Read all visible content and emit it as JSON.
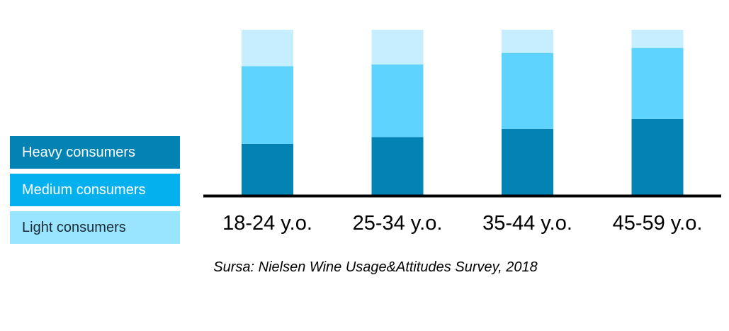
{
  "chart_data": {
    "type": "bar",
    "stacked": true,
    "normalized": true,
    "categories": [
      "18-24 y.o.",
      "25-34 y.o.",
      "35-44 y.o.",
      "45-59 y.o."
    ],
    "series": [
      {
        "name": "Heavy consumers",
        "color": "#0383b4",
        "values": [
          31,
          35,
          40,
          46
        ]
      },
      {
        "name": "Medium consumers",
        "color": "#5dd3fd",
        "values": [
          47,
          44,
          46,
          43
        ]
      },
      {
        "name": "Light consumers",
        "color": "#c7eefe",
        "values": [
          22,
          21,
          14,
          11
        ]
      }
    ],
    "ylim": [
      0,
      100
    ],
    "grid": false,
    "legend_position": "left"
  },
  "legend": {
    "items": [
      {
        "label": "Heavy consumers",
        "color": "#0383b4",
        "text_color": "#ffffff"
      },
      {
        "label": "Medium consumers",
        "color": "#04b0ee",
        "text_color": "#ffffff"
      },
      {
        "label": "Light consumers",
        "color": "#99e4fe",
        "text_color": "#1a2a33"
      }
    ]
  },
  "source_note": "Sursa: Nielsen Wine Usage&Attitudes Survey, 2018"
}
